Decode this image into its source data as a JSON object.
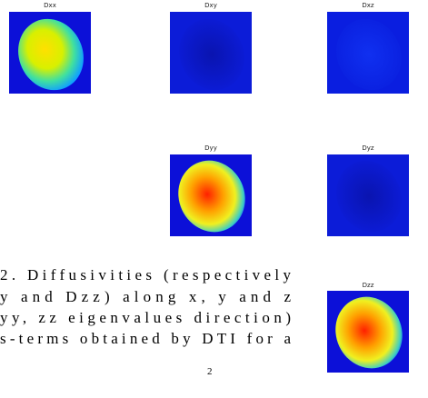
{
  "panels": [
    {
      "label": "Dxx"
    },
    {
      "label": "Dxy"
    },
    {
      "label": "Dxz"
    },
    {
      "label": "Dyy"
    },
    {
      "label": "Dyz"
    },
    {
      "label": "Dzz"
    }
  ],
  "caption": {
    "lines": [
      "2. Diffusivities (respectively",
      "y and Dzz) along x, y and z",
      " yy, zz  eigenvalues direction)",
      "s-terms obtained by DTI for a"
    ],
    "superscript": "2"
  }
}
